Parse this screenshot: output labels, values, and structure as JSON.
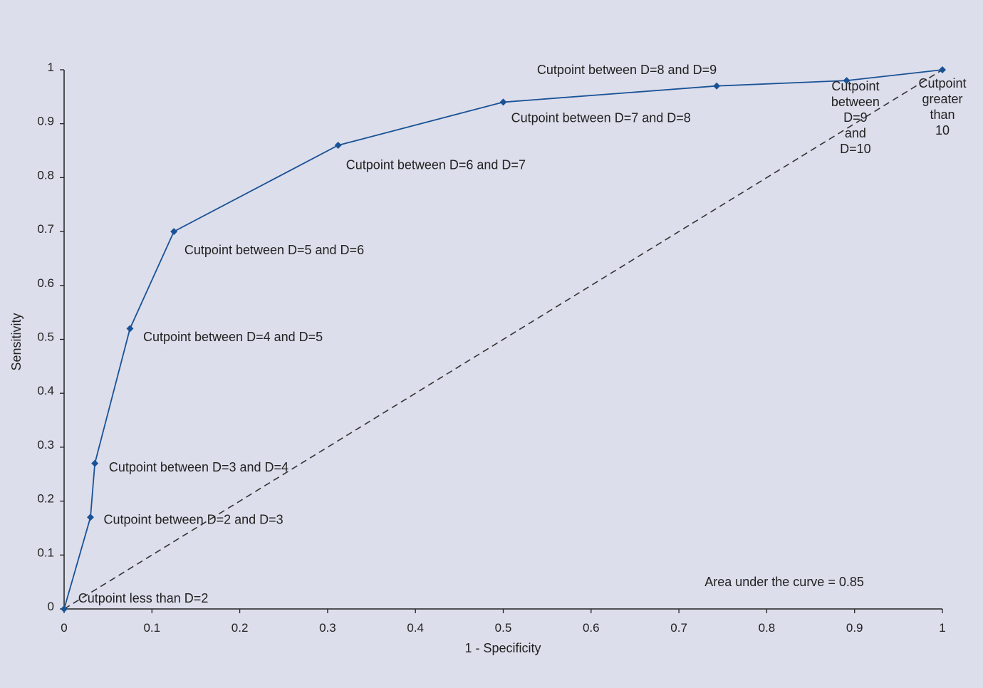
{
  "chart_data": {
    "type": "line",
    "xlabel": "1 - Specificity",
    "ylabel": "Sensitivity",
    "xlim": [
      0,
      1
    ],
    "ylim": [
      0,
      1
    ],
    "grid": false,
    "x_ticks": [
      "0",
      "0.1",
      "0.2",
      "0.3",
      "0.4",
      "0.5",
      "0.6",
      "0.7",
      "0.8",
      "0.9",
      "1"
    ],
    "y_ticks": [
      "0",
      "0.1",
      "0.2",
      "0.3",
      "0.4",
      "0.5",
      "0.6",
      "0.7",
      "0.8",
      "0.9",
      "1"
    ],
    "series": [
      {
        "color": "#1a5296",
        "marker": "diamond",
        "points": [
          {
            "x": 0,
            "y": 0
          },
          {
            "x": 0.03,
            "y": 0.17
          },
          {
            "x": 0.035,
            "y": 0.27
          },
          {
            "x": 0.075,
            "y": 0.52
          },
          {
            "x": 0.125,
            "y": 0.7
          },
          {
            "x": 0.312,
            "y": 0.86
          },
          {
            "x": 0.5,
            "y": 0.94
          },
          {
            "x": 0.743,
            "y": 0.97
          },
          {
            "x": 0.891,
            "y": 0.98
          },
          {
            "x": 1,
            "y": 1
          }
        ]
      }
    ],
    "reference_line": {
      "from": [
        0,
        0
      ],
      "to": [
        1,
        1
      ],
      "style": "dashed",
      "color": "#333333"
    },
    "annotations": [
      {
        "lines": [
          "Cutpoint less than D=2"
        ],
        "x": 0.016,
        "y": 0.012,
        "anchor": "start"
      },
      {
        "lines": [
          "Cutpoint between D=2 and D=3"
        ],
        "x": 0.045,
        "y": 0.158,
        "anchor": "start"
      },
      {
        "lines": [
          "Cutpoint between D=3 and D=4"
        ],
        "x": 0.051,
        "y": 0.255,
        "anchor": "start"
      },
      {
        "lines": [
          "Cutpoint between D=4 and D=5"
        ],
        "x": 0.09,
        "y": 0.497,
        "anchor": "start"
      },
      {
        "lines": [
          "Cutpoint between D=5 and D=6"
        ],
        "x": 0.137,
        "y": 0.658,
        "anchor": "start"
      },
      {
        "lines": [
          "Cutpoint between D=6 and D=7"
        ],
        "x": 0.321,
        "y": 0.816,
        "anchor": "start"
      },
      {
        "lines": [
          "Cutpoint between D=7 and D=8"
        ],
        "x": 0.509,
        "y": 0.903,
        "anchor": "start"
      },
      {
        "lines": [
          "Cutpoint between D=8 and D=9"
        ],
        "x": 0.743,
        "y": 0.992,
        "anchor": "end"
      },
      {
        "lines": [
          "Cutpoint",
          "between",
          "D=9",
          "and",
          "D=10"
        ],
        "x": 0.901,
        "y": 0.962,
        "anchor": "middle"
      },
      {
        "lines": [
          "Cutpoint",
          "greater",
          "than",
          "10"
        ],
        "x": 1.0,
        "y": 0.967,
        "anchor": "middle"
      },
      {
        "lines": [
          "Area under the curve = 0.85"
        ],
        "x": 0.82,
        "y": 0.042,
        "anchor": "middle"
      }
    ]
  }
}
